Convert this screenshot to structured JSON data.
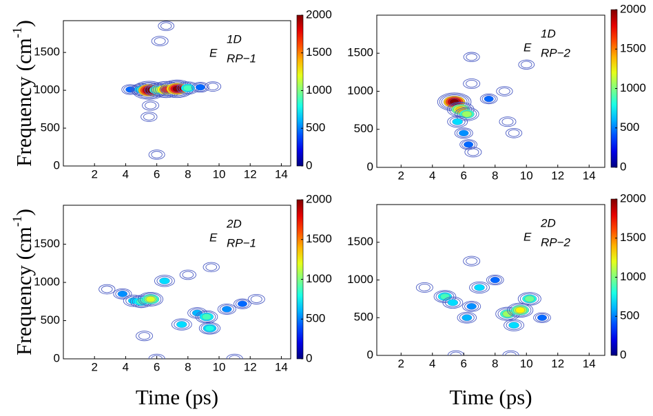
{
  "chart_data": [
    {
      "type": "contour",
      "title": "E",
      "title_superscript": "1D",
      "title_subscript": "RP−1",
      "ylabel": "Frequency (cm",
      "ylabel_superscript": "-1",
      "ylabel_end": ")",
      "xlim": [
        0,
        14.6
      ],
      "xticks": [
        2,
        4,
        6,
        8,
        10,
        12,
        14
      ],
      "ylim": [
        0,
        1920
      ],
      "yticks": [
        0,
        500,
        1000,
        1500
      ],
      "clim": [
        0,
        2000
      ],
      "cticks": [
        0,
        500,
        1000,
        1500,
        2000
      ],
      "colormap": "jet",
      "x": [
        4.3,
        5,
        5.5,
        6,
        6.6,
        7.3,
        8,
        8.8,
        9.6,
        6.2,
        5.6,
        5.5,
        6,
        6.6
      ],
      "y": [
        1010,
        1010,
        1000,
        1005,
        1010,
        1020,
        1030,
        1040,
        1050,
        1650,
        800,
        650,
        150,
        1850
      ],
      "values": [
        200,
        600,
        1900,
        900,
        1500,
        1800,
        700,
        200,
        100,
        150,
        150,
        100,
        80,
        60
      ]
    },
    {
      "type": "contour",
      "title": "E",
      "title_superscript": "1D",
      "title_subscript": "RP−2",
      "xlim": [
        0.45,
        15
      ],
      "xticks": [
        2,
        4,
        6,
        8,
        10,
        12,
        14
      ],
      "ylim": [
        0,
        2000
      ],
      "yticks": [
        0,
        500,
        1000,
        1500
      ],
      "clim": [
        0,
        2000
      ],
      "cticks": [
        0,
        500,
        1000,
        1500,
        2000
      ],
      "colormap": "jet",
      "x": [
        5.4,
        5.8,
        6.2,
        5.6,
        6,
        6.3,
        6.6,
        6.5,
        7.6,
        8.6,
        8.8,
        9.2,
        6.5,
        10
      ],
      "y": [
        860,
        760,
        700,
        600,
        450,
        300,
        200,
        1100,
        900,
        1000,
        600,
        450,
        1450,
        1350
      ],
      "values": [
        1900,
        1200,
        900,
        500,
        300,
        200,
        150,
        150,
        200,
        100,
        150,
        100,
        80,
        60
      ]
    },
    {
      "type": "contour",
      "title": "E",
      "title_superscript": "2D",
      "title_subscript": "RP−1",
      "ylabel": "Frequency (cm",
      "ylabel_superscript": "-1",
      "ylabel_end": ")",
      "xlabel": "Time (ps)",
      "xlim": [
        0,
        14.6
      ],
      "xticks": [
        2,
        4,
        6,
        8,
        10,
        12,
        14
      ],
      "ylim": [
        0,
        2010
      ],
      "yticks": [
        0,
        500,
        1000,
        1500
      ],
      "clim": [
        0,
        2000
      ],
      "cticks": [
        0,
        500,
        1000,
        1500,
        2000
      ],
      "colormap": "jet",
      "x": [
        2.8,
        3.8,
        4.5,
        5,
        5.6,
        6.5,
        7.6,
        8.6,
        9.2,
        9.4,
        10.5,
        11.5,
        12.4,
        8,
        9.5,
        6,
        11,
        5.2
      ],
      "y": [
        910,
        850,
        760,
        750,
        780,
        1020,
        450,
        600,
        550,
        400,
        650,
        720,
        780,
        1100,
        1200,
        0,
        0,
        300
      ],
      "values": [
        100,
        300,
        500,
        700,
        1000,
        500,
        500,
        400,
        700,
        600,
        300,
        200,
        150,
        100,
        100,
        100,
        100,
        150
      ]
    },
    {
      "type": "contour",
      "title": "E",
      "title_superscript": "2D",
      "title_subscript": "RP−2",
      "xlabel": "Time (ps)",
      "xlim": [
        0.45,
        15
      ],
      "xticks": [
        2,
        4,
        6,
        8,
        10,
        12,
        14
      ],
      "ylim": [
        0,
        2000
      ],
      "yticks": [
        0,
        500,
        1000,
        1500
      ],
      "clim": [
        0,
        2000
      ],
      "cticks": [
        0,
        500,
        1000,
        1500,
        2000
      ],
      "colormap": "jet",
      "x": [
        3.5,
        4.8,
        5.3,
        6.5,
        6.2,
        7,
        8.8,
        9.6,
        10.2,
        9.2,
        6.5,
        8,
        5.5,
        9,
        11
      ],
      "y": [
        900,
        780,
        700,
        650,
        500,
        900,
        550,
        600,
        750,
        400,
        1250,
        1000,
        0,
        0,
        500
      ],
      "values": [
        150,
        700,
        500,
        300,
        400,
        500,
        900,
        1100,
        800,
        500,
        150,
        200,
        100,
        100,
        200
      ]
    }
  ]
}
